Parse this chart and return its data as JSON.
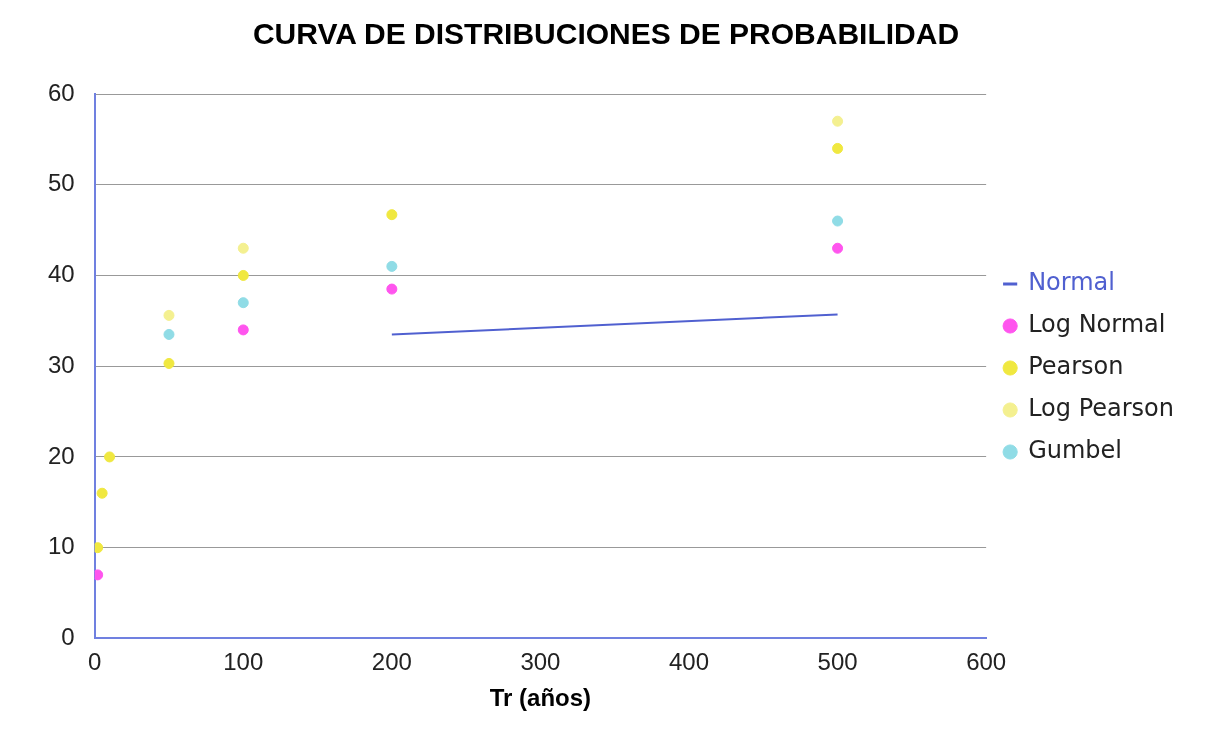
{
  "chart_data": {
    "type": "scatter",
    "title": "CURVA DE DISTRIBUCIONES DE PROBABILIDAD",
    "xlabel": "Tr (años)",
    "xlim": [
      0,
      600
    ],
    "xticks": [
      0,
      100,
      200,
      300,
      400,
      500,
      600
    ],
    "ylim": [
      0,
      60
    ],
    "yticks": [
      0,
      10,
      20,
      30,
      40,
      50,
      60
    ],
    "grid": "y",
    "legend": "right",
    "marker": "circle",
    "series": [
      {
        "name": "Normal",
        "type": "line",
        "color": "#5060d0",
        "x": [
          200,
          500
        ],
        "values": [
          33.5,
          35.7
        ],
        "marker": "none"
      },
      {
        "name": "Log Normal",
        "color": "#ff55ee",
        "x": [
          2,
          100,
          200,
          500
        ],
        "values": [
          7,
          34,
          38.5,
          43
        ]
      },
      {
        "name": "Pearson",
        "color": "#f0e840",
        "x": [
          2,
          5,
          10,
          50,
          100,
          200,
          500
        ],
        "values": [
          10,
          16,
          20,
          30.3,
          40,
          46.7,
          54
        ]
      },
      {
        "name": "Log Pearson",
        "color": "#f4f090",
        "x": [
          50,
          100,
          500
        ],
        "values": [
          35.6,
          43,
          57
        ]
      },
      {
        "name": "Gumbel",
        "color": "#90dce6",
        "x": [
          50,
          100,
          200,
          500
        ],
        "values": [
          33.5,
          37,
          41,
          46
        ]
      }
    ]
  }
}
